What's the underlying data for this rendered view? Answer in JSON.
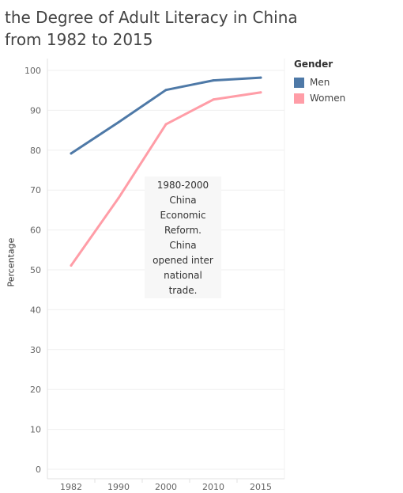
{
  "title": {
    "line1": "the Degree of Adult Literacy in China",
    "line2": "from 1982 to 2015"
  },
  "legend": {
    "title": "Gender",
    "items": [
      {
        "label": "Men",
        "color": "#4e79a7"
      },
      {
        "label": "Women",
        "color": "#ff9da7"
      }
    ]
  },
  "annotation": "1980-2000\nChina\nEconomic\nReform.\nChina\nopened inter\nnational\ntrade.",
  "chart_data": {
    "type": "line",
    "categories": [
      "1982",
      "1990",
      "2000",
      "2010",
      "2015"
    ],
    "ylabel": "Percentage",
    "xlabel": "",
    "ylim": [
      0,
      100
    ],
    "yticks": [
      0,
      10,
      20,
      30,
      40,
      50,
      60,
      70,
      80,
      90,
      100
    ],
    "grid": true,
    "legend_position": "top-right",
    "series": [
      {
        "name": "Men",
        "color": "#4e79a7",
        "values": [
          79.2,
          87.0,
          95.1,
          97.5,
          98.2
        ]
      },
      {
        "name": "Women",
        "color": "#ff9da7",
        "values": [
          51.1,
          68.0,
          86.5,
          92.7,
          94.5
        ]
      }
    ]
  }
}
